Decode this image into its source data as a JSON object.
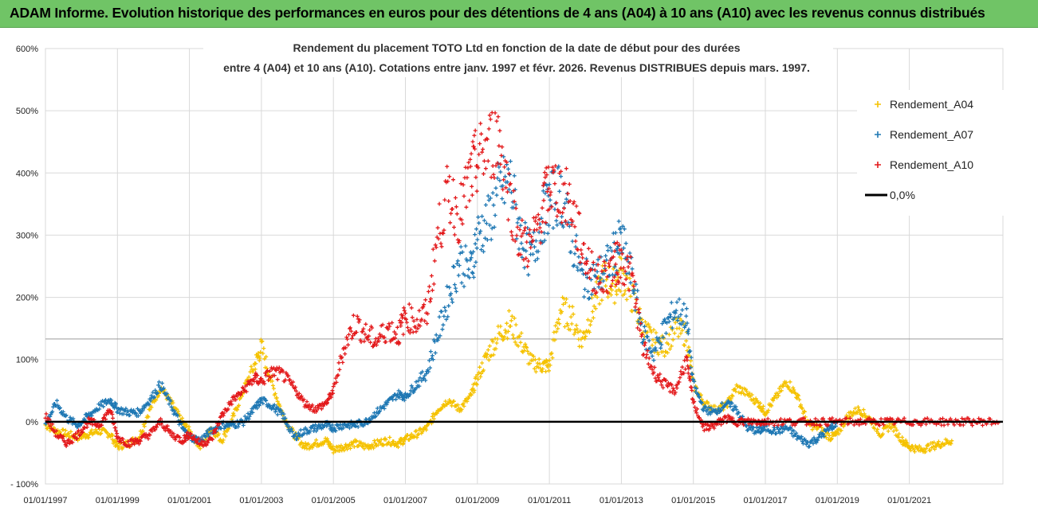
{
  "header": {
    "title": "ADAM Informe. Evolution historique des performances en euros pour des détentions de 4 ans (A04) à 10 ans (A10) avec les revenus connus distribués"
  },
  "chart_data": {
    "type": "scatter",
    "title_lines": [
      "Rendement du placement TOTO Ltd en fonction de la date de début pour des durées",
      "entre 4 (A04) et 10 ans (A10). Cotations entre janv. 1997 et févr. 2026. Revenus DISTRIBUES depuis mars. 1997."
    ],
    "xlabel": "",
    "ylabel": "",
    "xlim": [
      1997.0,
      2023.6
    ],
    "ylim": [
      -100,
      600
    ],
    "y_ticks": [
      -100,
      0,
      100,
      200,
      300,
      400,
      500,
      600
    ],
    "y_tick_labels": [
      "- 100%",
      "0%",
      "100%",
      "200%",
      "300%",
      "400%",
      "500%",
      "600%"
    ],
    "x_ticks": [
      1997,
      1999,
      2001,
      2003,
      2005,
      2007,
      2009,
      2011,
      2013,
      2015,
      2017,
      2019,
      2021
    ],
    "x_tick_labels": [
      "01/01/1997",
      "01/01/1999",
      "01/01/2001",
      "01/01/2003",
      "01/01/2005",
      "01/01/2007",
      "01/01/2009",
      "01/01/2011",
      "01/01/2013",
      "01/01/2015",
      "01/01/2017",
      "01/01/2019",
      "01/01/2021"
    ],
    "legend_position": "top-right",
    "series": [
      {
        "name": "Rendement_A04",
        "color": "#f5c200",
        "marker": "plus",
        "x": [
          1997.0,
          1997.3,
          1997.6,
          1997.9,
          1998.2,
          1998.5,
          1998.8,
          1999.0,
          1999.3,
          1999.6,
          1999.9,
          2000.2,
          2000.5,
          2000.8,
          2001.0,
          2001.3,
          2001.6,
          2001.9,
          2002.2,
          2002.5,
          2002.8,
          2003.0,
          2003.3,
          2003.6,
          2003.9,
          2004.2,
          2004.5,
          2004.8,
          2005.0,
          2005.3,
          2005.6,
          2005.9,
          2006.2,
          2006.5,
          2006.8,
          2007.0,
          2007.3,
          2007.6,
          2007.9,
          2008.2,
          2008.5,
          2008.8,
          2009.0,
          2009.3,
          2009.6,
          2009.9,
          2010.2,
          2010.5,
          2010.8,
          2011.0,
          2011.3,
          2011.6,
          2011.9,
          2012.2,
          2012.5,
          2012.8,
          2013.0,
          2013.3,
          2013.6,
          2013.9,
          2014.2,
          2014.5,
          2014.8,
          2015.0,
          2015.3,
          2015.6,
          2015.9,
          2016.2,
          2016.5,
          2016.8,
          2017.0,
          2017.3,
          2017.6,
          2017.9,
          2018.2,
          2018.5,
          2018.8,
          2019.0,
          2019.3,
          2019.6,
          2019.9,
          2020.2,
          2020.5,
          2020.8,
          2021.0,
          2021.3,
          2021.6,
          2021.9,
          2022.2
        ],
        "y": [
          -5,
          -15,
          -20,
          -25,
          -20,
          -15,
          -20,
          -40,
          -35,
          -25,
          20,
          55,
          30,
          0,
          -15,
          -40,
          -10,
          -30,
          5,
          50,
          90,
          120,
          60,
          10,
          -20,
          -40,
          -35,
          -30,
          -45,
          -40,
          -35,
          -40,
          -35,
          -30,
          -35,
          -28,
          -20,
          -10,
          20,
          35,
          20,
          40,
          70,
          110,
          140,
          160,
          130,
          95,
          90,
          90,
          180,
          170,
          130,
          180,
          230,
          220,
          240,
          200,
          150,
          130,
          120,
          150,
          140,
          60,
          30,
          20,
          25,
          55,
          45,
          30,
          15,
          40,
          65,
          40,
          -5,
          -10,
          -25,
          -20,
          10,
          20,
          5,
          -20,
          -5,
          -30,
          -40,
          -45,
          -40,
          -35,
          -30
        ]
      },
      {
        "name": "Rendement_A07",
        "color": "#1f78b4",
        "marker": "plus",
        "x": [
          1997.0,
          1997.3,
          1997.6,
          1997.9,
          1998.2,
          1998.5,
          1998.8,
          1999.0,
          1999.3,
          1999.6,
          1999.9,
          2000.2,
          2000.5,
          2000.8,
          2001.0,
          2001.3,
          2001.6,
          2001.9,
          2002.2,
          2002.5,
          2002.8,
          2003.0,
          2003.3,
          2003.6,
          2003.9,
          2004.2,
          2004.5,
          2004.8,
          2005.0,
          2005.3,
          2005.6,
          2005.9,
          2006.2,
          2006.5,
          2006.8,
          2007.0,
          2007.3,
          2007.6,
          2007.9,
          2008.2,
          2008.5,
          2008.8,
          2009.0,
          2009.3,
          2009.6,
          2009.9,
          2010.2,
          2010.5,
          2010.8,
          2011.0,
          2011.3,
          2011.6,
          2011.9,
          2012.2,
          2012.5,
          2012.8,
          2013.0,
          2013.3,
          2013.6,
          2013.9,
          2014.2,
          2014.5,
          2014.8,
          2015.0,
          2015.3,
          2015.6,
          2015.9,
          2016.2,
          2016.5,
          2016.8,
          2017.0,
          2017.3,
          2017.6,
          2017.9,
          2018.2,
          2018.5,
          2018.8,
          2019.0
        ],
        "y": [
          -5,
          30,
          5,
          -5,
          10,
          25,
          35,
          20,
          15,
          15,
          35,
          60,
          25,
          -10,
          -25,
          -30,
          -15,
          -5,
          -5,
          0,
          20,
          35,
          25,
          10,
          -25,
          -15,
          -10,
          -5,
          -10,
          -5,
          -5,
          0,
          15,
          30,
          45,
          40,
          60,
          80,
          140,
          200,
          260,
          240,
          300,
          320,
          370,
          390,
          300,
          260,
          330,
          350,
          370,
          300,
          230,
          230,
          240,
          270,
          290,
          230,
          140,
          110,
          150,
          180,
          170,
          60,
          20,
          15,
          30,
          20,
          -10,
          -15,
          -10,
          -15,
          -10,
          -25,
          -35,
          -25,
          -10,
          0
        ]
      },
      {
        "name": "Rendement_A10",
        "color": "#e31a1c",
        "marker": "plus",
        "x": [
          1997.0,
          1997.3,
          1997.6,
          1997.9,
          1998.2,
          1998.5,
          1998.8,
          1999.0,
          1999.3,
          1999.6,
          1999.9,
          2000.2,
          2000.5,
          2000.8,
          2001.0,
          2001.3,
          2001.6,
          2001.9,
          2002.2,
          2002.5,
          2002.8,
          2003.0,
          2003.3,
          2003.6,
          2003.9,
          2004.2,
          2004.5,
          2004.8,
          2005.0,
          2005.3,
          2005.6,
          2005.9,
          2006.2,
          2006.5,
          2006.8,
          2007.0,
          2007.3,
          2007.6,
          2007.9,
          2008.2,
          2008.5,
          2008.8,
          2009.0,
          2009.3,
          2009.6,
          2009.9,
          2010.2,
          2010.5,
          2010.8,
          2011.0,
          2011.3,
          2011.6,
          2011.9,
          2012.2,
          2012.5,
          2012.8,
          2013.0,
          2013.3,
          2013.6,
          2013.9,
          2014.2,
          2014.5,
          2014.8,
          2015.0,
          2015.3,
          2015.6,
          2015.9,
          2016.2,
          2016.5,
          2016.8,
          2017.0,
          2017.5,
          2018.0,
          2018.5,
          2019.0,
          2019.5,
          2020.0,
          2020.5,
          2021.0,
          2021.5,
          2022.0,
          2022.5,
          2023.0,
          2023.5
        ],
        "y": [
          10,
          -20,
          -35,
          -20,
          0,
          -5,
          20,
          -25,
          -35,
          -30,
          -20,
          0,
          -20,
          -30,
          -20,
          -35,
          -30,
          10,
          35,
          50,
          70,
          65,
          80,
          75,
          55,
          30,
          20,
          30,
          50,
          120,
          160,
          140,
          130,
          150,
          140,
          170,
          160,
          175,
          300,
          370,
          330,
          390,
          420,
          440,
          460,
          360,
          290,
          280,
          340,
          380,
          370,
          350,
          280,
          240,
          230,
          250,
          260,
          230,
          120,
          80,
          60,
          50,
          100,
          30,
          -10,
          -5,
          5,
          0,
          0,
          0,
          0,
          0,
          0,
          0,
          0,
          0,
          0,
          0,
          0,
          0,
          0,
          0,
          0,
          0
        ]
      },
      {
        "name": "0,0%",
        "color": "#000000",
        "marker": "line",
        "x": [
          1997.0,
          2023.6
        ],
        "y": [
          0,
          0
        ]
      }
    ],
    "annotations": {
      "horizontal_reference_value": 133
    }
  }
}
